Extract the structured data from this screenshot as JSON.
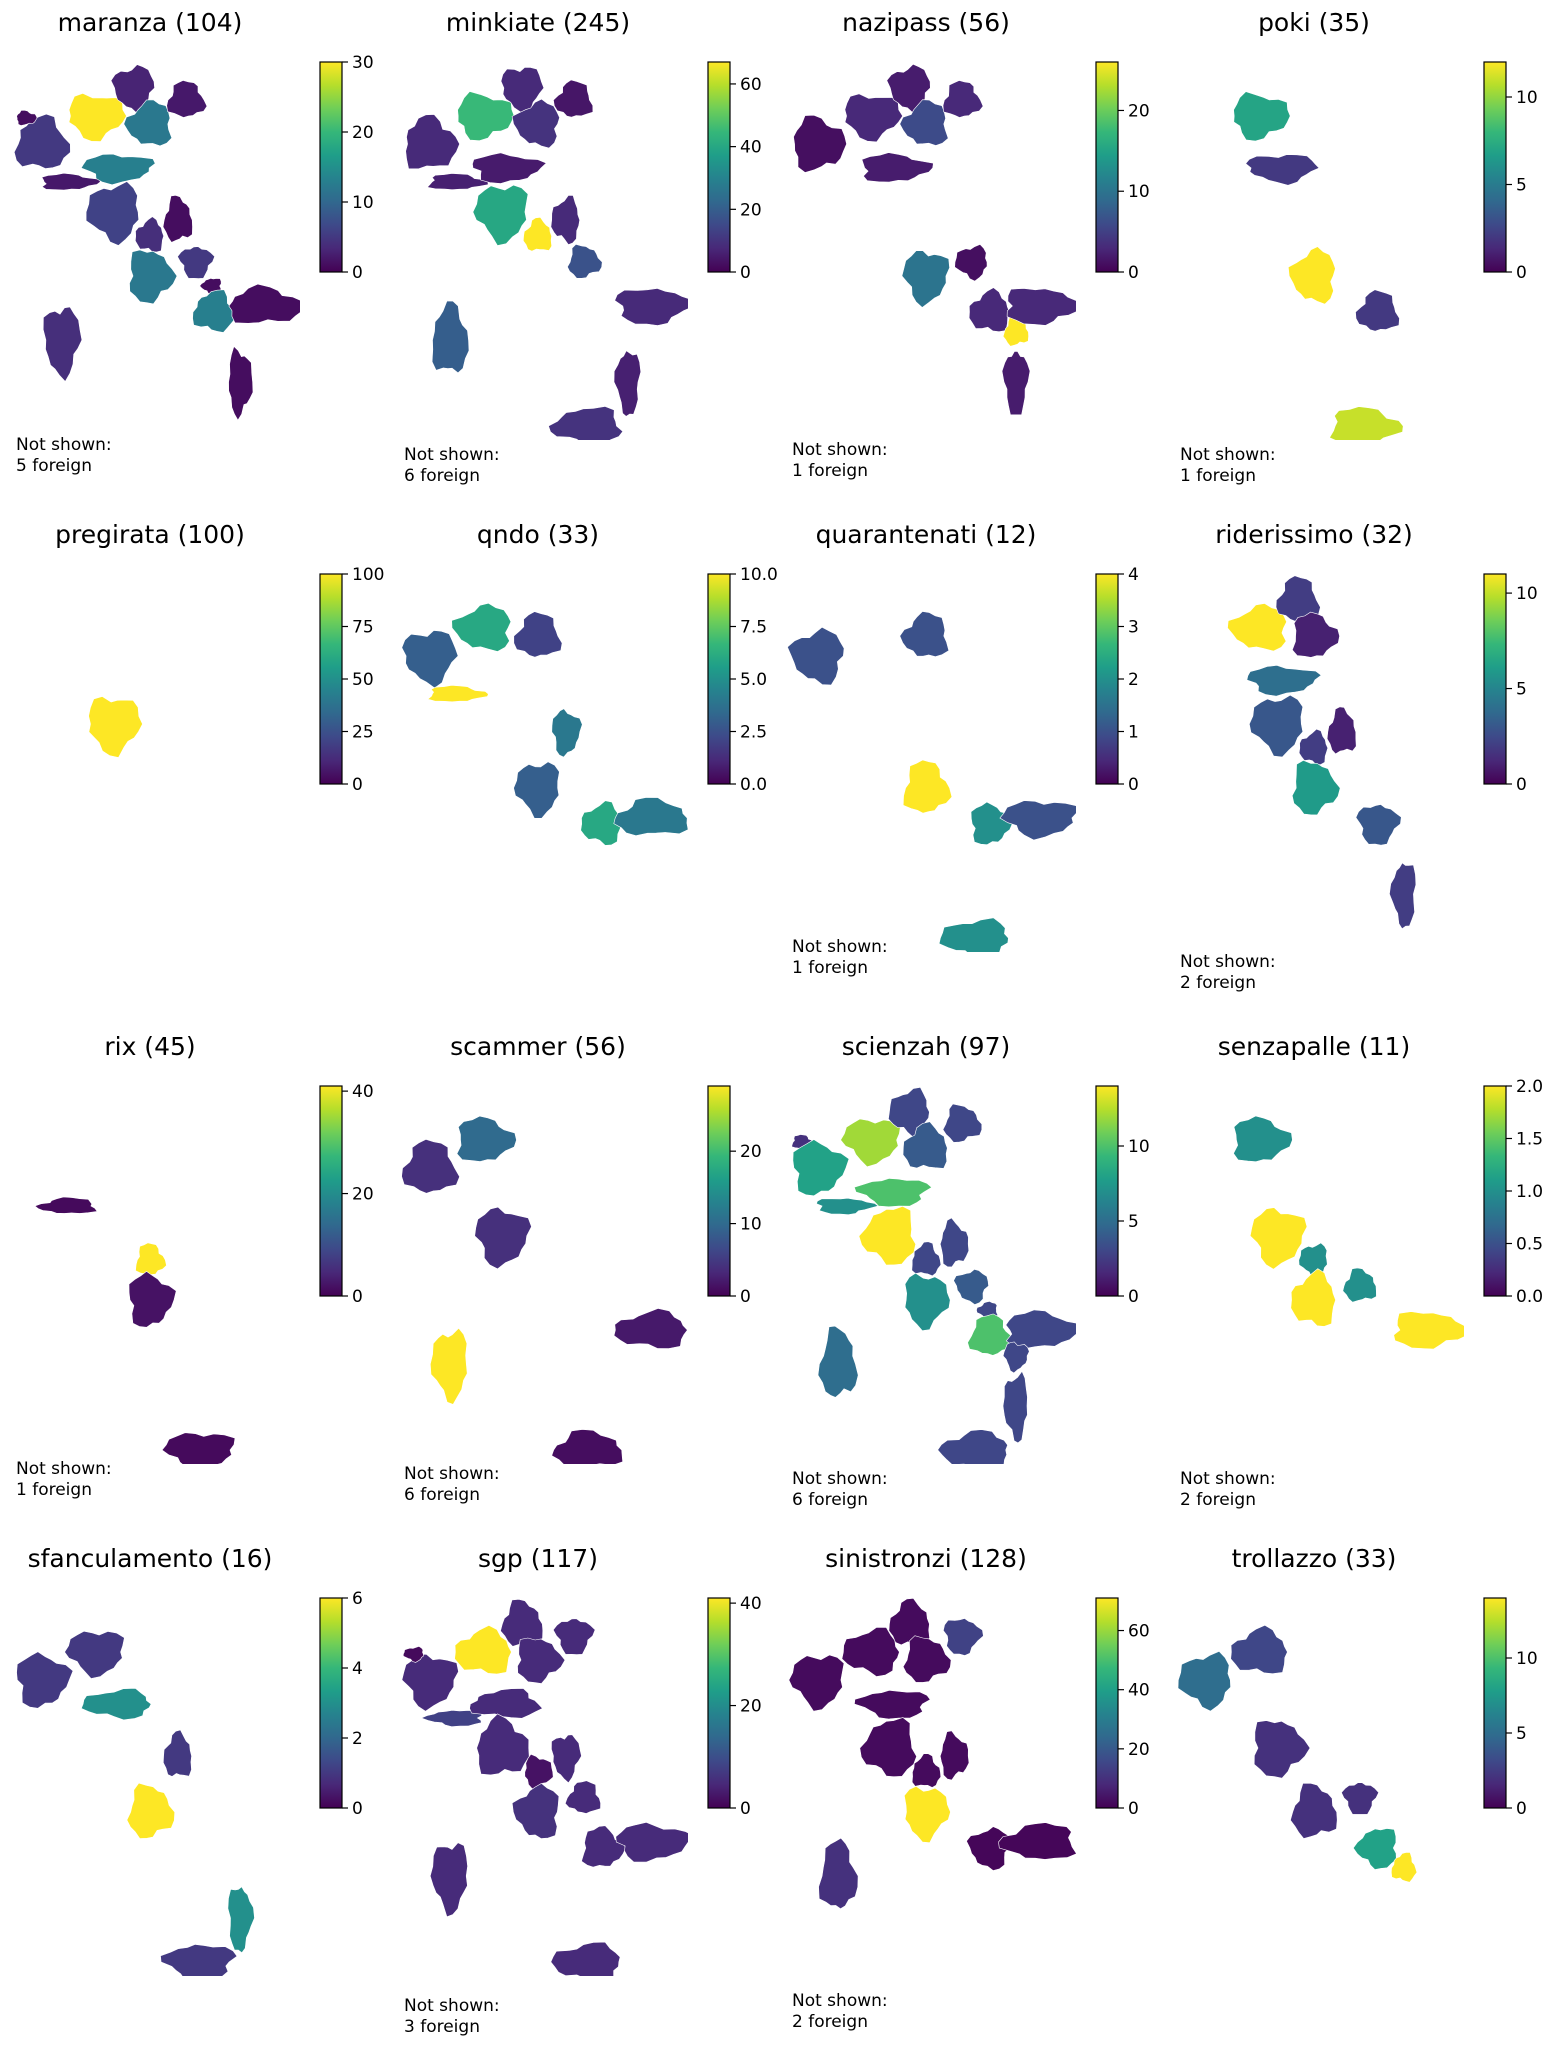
{
  "chart_data": [
    {
      "type": "choropleth",
      "title": "maranza (104)",
      "colorbar": {
        "min": 0,
        "max": 30,
        "ticks": [
          0,
          10,
          20,
          30
        ]
      },
      "not_shown": {
        "label": "Not shown:",
        "value": "5 foreign"
      },
      "regions": [
        {
          "region": "Piemonte",
          "value": 5
        },
        {
          "region": "Valle d'Aosta",
          "value": 1
        },
        {
          "region": "Lombardia",
          "value": 30
        },
        {
          "region": "Trentino-Alto Adige",
          "value": 3
        },
        {
          "region": "Veneto",
          "value": 12
        },
        {
          "region": "Friuli-Venezia Giulia",
          "value": 2
        },
        {
          "region": "Liguria",
          "value": 2
        },
        {
          "region": "Emilia-Romagna",
          "value": 13
        },
        {
          "region": "Toscana",
          "value": 6
        },
        {
          "region": "Umbria",
          "value": 4
        },
        {
          "region": "Marche",
          "value": 1
        },
        {
          "region": "Lazio",
          "value": 12
        },
        {
          "region": "Abruzzo",
          "value": 5
        },
        {
          "region": "Molise",
          "value": 1
        },
        {
          "region": "Campania",
          "value": 13
        },
        {
          "region": "Puglia",
          "value": 1
        },
        {
          "region": "Calabria",
          "value": 1
        },
        {
          "region": "Sardegna",
          "value": 4
        }
      ]
    },
    {
      "type": "choropleth",
      "title": "minkiate (245)",
      "colorbar": {
        "min": 0,
        "max": 67,
        "ticks": [
          0,
          20,
          40,
          60
        ]
      },
      "not_shown": {
        "label": "Not shown:",
        "value": "6 foreign"
      },
      "regions": [
        {
          "region": "Piemonte",
          "value": 8
        },
        {
          "region": "Lombardia",
          "value": 45
        },
        {
          "region": "Trentino-Alto Adige",
          "value": 8
        },
        {
          "region": "Veneto",
          "value": 10
        },
        {
          "region": "Friuli-Venezia Giulia",
          "value": 4
        },
        {
          "region": "Liguria",
          "value": 6
        },
        {
          "region": "Emilia-Romagna",
          "value": 5
        },
        {
          "region": "Toscana",
          "value": 40
        },
        {
          "region": "Marche",
          "value": 8
        },
        {
          "region": "Umbria",
          "value": 67
        },
        {
          "region": "Abruzzo",
          "value": 17
        },
        {
          "region": "Puglia",
          "value": 8
        },
        {
          "region": "Calabria",
          "value": 6
        },
        {
          "region": "Sicilia",
          "value": 10
        },
        {
          "region": "Sardegna",
          "value": 20
        }
      ]
    },
    {
      "type": "choropleth",
      "title": "nazipass (56)",
      "colorbar": {
        "min": 0,
        "max": 26,
        "ticks": [
          0,
          10,
          20
        ]
      },
      "not_shown": {
        "label": "Not shown:",
        "value": "1 foreign"
      },
      "regions": [
        {
          "region": "Piemonte",
          "value": 1
        },
        {
          "region": "Lombardia",
          "value": 3
        },
        {
          "region": "Trentino-Alto Adige",
          "value": 2
        },
        {
          "region": "Veneto",
          "value": 6
        },
        {
          "region": "Friuli-Venezia Giulia",
          "value": 3
        },
        {
          "region": "Emilia-Romagna",
          "value": 2
        },
        {
          "region": "Lazio",
          "value": 10
        },
        {
          "region": "Abruzzo",
          "value": 1
        },
        {
          "region": "Campania",
          "value": 3
        },
        {
          "region": "Basilicata",
          "value": 26
        },
        {
          "region": "Puglia",
          "value": 3
        },
        {
          "region": "Calabria",
          "value": 2
        }
      ]
    },
    {
      "type": "choropleth",
      "title": "poki (35)",
      "colorbar": {
        "min": 0,
        "max": 12,
        "ticks": [
          0,
          5,
          10
        ]
      },
      "not_shown": {
        "label": "Not shown:",
        "value": "1 foreign"
      },
      "regions": [
        {
          "region": "Lombardia",
          "value": 7
        },
        {
          "region": "Emilia-Romagna",
          "value": 2
        },
        {
          "region": "Lazio",
          "value": 12
        },
        {
          "region": "Campania",
          "value": 2
        },
        {
          "region": "Sicilia",
          "value": 11
        }
      ]
    },
    {
      "type": "choropleth",
      "title": "pregirata (100)",
      "colorbar": {
        "min": 0,
        "max": 100,
        "ticks": [
          0,
          25,
          50,
          75,
          100
        ]
      },
      "regions": [
        {
          "region": "Toscana",
          "value": 100
        }
      ]
    },
    {
      "type": "choropleth",
      "title": "qndo (33)",
      "colorbar": {
        "min": 0,
        "max": 10,
        "ticks": [
          "0.0",
          "2.5",
          "5.0",
          "7.5",
          "10.0"
        ]
      },
      "regions": [
        {
          "region": "Piemonte",
          "value": 3
        },
        {
          "region": "Lombardia",
          "value": 6
        },
        {
          "region": "Veneto",
          "value": 2
        },
        {
          "region": "Liguria",
          "value": 10
        },
        {
          "region": "Marche",
          "value": 4
        },
        {
          "region": "Lazio",
          "value": 3
        },
        {
          "region": "Campania",
          "value": 6
        },
        {
          "region": "Puglia",
          "value": 4
        }
      ]
    },
    {
      "type": "choropleth",
      "title": "quarantenati (12)",
      "colorbar": {
        "min": 0,
        "max": 4,
        "ticks": [
          0,
          1,
          2,
          3,
          4
        ]
      },
      "not_shown": {
        "label": "Not shown:",
        "value": "1 foreign"
      },
      "regions": [
        {
          "region": "Piemonte",
          "value": 1
        },
        {
          "region": "Veneto",
          "value": 1
        },
        {
          "region": "Lazio",
          "value": 4
        },
        {
          "region": "Campania",
          "value": 2
        },
        {
          "region": "Puglia",
          "value": 1
        },
        {
          "region": "Sicilia",
          "value": 2
        }
      ]
    },
    {
      "type": "choropleth",
      "title": "riderissimo (32)",
      "colorbar": {
        "min": 0,
        "max": 11,
        "ticks": [
          0,
          5,
          10
        ]
      },
      "not_shown": {
        "label": "Not shown:",
        "value": "2 foreign"
      },
      "regions": [
        {
          "region": "Lombardia",
          "value": 11
        },
        {
          "region": "Trentino-Alto Adige",
          "value": 2
        },
        {
          "region": "Veneto",
          "value": 1
        },
        {
          "region": "Emilia-Romagna",
          "value": 4
        },
        {
          "region": "Toscana",
          "value": 3
        },
        {
          "region": "Umbria",
          "value": 2
        },
        {
          "region": "Marche",
          "value": 1
        },
        {
          "region": "Lazio",
          "value": 6
        },
        {
          "region": "Campania",
          "value": 3
        },
        {
          "region": "Calabria",
          "value": 2
        }
      ]
    },
    {
      "type": "choropleth",
      "title": "rix (45)",
      "colorbar": {
        "min": 0,
        "max": 41,
        "ticks": [
          0,
          20,
          40
        ]
      },
      "not_shown": {
        "label": "Not shown:",
        "value": "1 foreign"
      },
      "regions": [
        {
          "region": "Liguria",
          "value": 1
        },
        {
          "region": "Umbria",
          "value": 41
        },
        {
          "region": "Lazio",
          "value": 2
        },
        {
          "region": "Sicilia",
          "value": 1
        }
      ]
    },
    {
      "type": "choropleth",
      "title": "scammer (56)",
      "colorbar": {
        "min": 0,
        "max": 29,
        "ticks": [
          0,
          10,
          20
        ]
      },
      "not_shown": {
        "label": "Not shown:",
        "value": "6 foreign"
      },
      "regions": [
        {
          "region": "Piemonte",
          "value": 4
        },
        {
          "region": "Lombardia",
          "value": 10
        },
        {
          "region": "Toscana",
          "value": 4
        },
        {
          "region": "Sardegna",
          "value": 29
        },
        {
          "region": "Puglia",
          "value": 2
        },
        {
          "region": "Sicilia",
          "value": 1
        }
      ]
    },
    {
      "type": "choropleth",
      "title": "scienzah (97)",
      "colorbar": {
        "min": 0,
        "max": 14,
        "ticks": [
          0,
          5,
          10
        ]
      },
      "not_shown": {
        "label": "Not shown:",
        "value": "6 foreign"
      },
      "regions": [
        {
          "region": "Valle d'Aosta",
          "value": 2
        },
        {
          "region": "Piemonte",
          "value": 8
        },
        {
          "region": "Lombardia",
          "value": 12
        },
        {
          "region": "Trentino-Alto Adige",
          "value": 3
        },
        {
          "region": "Veneto",
          "value": 4
        },
        {
          "region": "Friuli-Venezia Giulia",
          "value": 3
        },
        {
          "region": "Liguria",
          "value": 7
        },
        {
          "region": "Emilia-Romagna",
          "value": 10
        },
        {
          "region": "Toscana",
          "value": 14
        },
        {
          "region": "Umbria",
          "value": 3
        },
        {
          "region": "Marche",
          "value": 3
        },
        {
          "region": "Lazio",
          "value": 7
        },
        {
          "region": "Abruzzo",
          "value": 4
        },
        {
          "region": "Molise",
          "value": 3
        },
        {
          "region": "Campania",
          "value": 10
        },
        {
          "region": "Puglia",
          "value": 3
        },
        {
          "region": "Basilicata",
          "value": 3
        },
        {
          "region": "Calabria",
          "value": 3
        },
        {
          "region": "Sicilia",
          "value": 3
        },
        {
          "region": "Sardegna",
          "value": 5
        }
      ]
    },
    {
      "type": "choropleth",
      "title": "senzapalle (11)",
      "colorbar": {
        "min": 0,
        "max": 2,
        "ticks": [
          "0.0",
          "0.5",
          "1.0",
          "1.5",
          "2.0"
        ]
      },
      "not_shown": {
        "label": "Not shown:",
        "value": "2 foreign"
      },
      "regions": [
        {
          "region": "Lombardia",
          "value": 1
        },
        {
          "region": "Toscana",
          "value": 2
        },
        {
          "region": "Umbria",
          "value": 1
        },
        {
          "region": "Lazio",
          "value": 2
        },
        {
          "region": "Abruzzo",
          "value": 1
        },
        {
          "region": "Puglia",
          "value": 2
        }
      ]
    },
    {
      "type": "choropleth",
      "title": "sfanculamento (16)",
      "colorbar": {
        "min": 0,
        "max": 6,
        "ticks": [
          0,
          2,
          4,
          6
        ]
      },
      "regions": [
        {
          "region": "Piemonte",
          "value": 1
        },
        {
          "region": "Lombardia",
          "value": 1
        },
        {
          "region": "Emilia-Romagna",
          "value": 3
        },
        {
          "region": "Marche",
          "value": 1
        },
        {
          "region": "Lazio",
          "value": 6
        },
        {
          "region": "Calabria",
          "value": 3
        },
        {
          "region": "Sicilia",
          "value": 1
        }
      ]
    },
    {
      "type": "choropleth",
      "title": "sgp (117)",
      "colorbar": {
        "min": 0,
        "max": 41,
        "ticks": [
          0,
          20,
          40
        ]
      },
      "not_shown": {
        "label": "Not shown:",
        "value": "3 foreign"
      },
      "regions": [
        {
          "region": "Piemonte",
          "value": 5
        },
        {
          "region": "Valle d'Aosta",
          "value": 1
        },
        {
          "region": "Lombardia",
          "value": 41
        },
        {
          "region": "Trentino-Alto Adige",
          "value": 5
        },
        {
          "region": "Veneto",
          "value": 5
        },
        {
          "region": "Friuli-Venezia Giulia",
          "value": 5
        },
        {
          "region": "Liguria",
          "value": 8
        },
        {
          "region": "Emilia-Romagna",
          "value": 5
        },
        {
          "region": "Toscana",
          "value": 5
        },
        {
          "region": "Umbria",
          "value": 2
        },
        {
          "region": "Marche",
          "value": 5
        },
        {
          "region": "Lazio",
          "value": 6
        },
        {
          "region": "Abruzzo",
          "value": 5
        },
        {
          "region": "Campania",
          "value": 5
        },
        {
          "region": "Puglia",
          "value": 5
        },
        {
          "region": "Sardegna",
          "value": 5
        },
        {
          "region": "Sicilia",
          "value": 5
        }
      ]
    },
    {
      "type": "choropleth",
      "title": "sinistronzi (128)",
      "colorbar": {
        "min": 0,
        "max": 71,
        "ticks": [
          0,
          20,
          40,
          60
        ]
      },
      "not_shown": {
        "label": "Not shown:",
        "value": "2 foreign"
      },
      "regions": [
        {
          "region": "Piemonte",
          "value": 2
        },
        {
          "region": "Lombardia",
          "value": 2
        },
        {
          "region": "Trentino-Alto Adige",
          "value": 2
        },
        {
          "region": "Veneto",
          "value": 2
        },
        {
          "region": "Friuli-Venezia Giulia",
          "value": 14
        },
        {
          "region": "Emilia-Romagna",
          "value": 2
        },
        {
          "region": "Toscana",
          "value": 2
        },
        {
          "region": "Umbria",
          "value": 2
        },
        {
          "region": "Marche",
          "value": 2
        },
        {
          "region": "Lazio",
          "value": 71
        },
        {
          "region": "Campania",
          "value": 1
        },
        {
          "region": "Puglia",
          "value": 1
        },
        {
          "region": "Sardegna",
          "value": 10
        }
      ]
    },
    {
      "type": "choropleth",
      "title": "trollazzo (33)",
      "colorbar": {
        "min": 0,
        "max": 14,
        "ticks": [
          0,
          5,
          10
        ]
      },
      "regions": [
        {
          "region": "Piemonte",
          "value": 5
        },
        {
          "region": "Lombardia",
          "value": 3
        },
        {
          "region": "Lazio",
          "value": 2
        },
        {
          "region": "Toscana",
          "value": 2
        },
        {
          "region": "Abruzzo",
          "value": 2
        },
        {
          "region": "Campania",
          "value": 8
        },
        {
          "region": "Basilicata",
          "value": 14
        }
      ]
    }
  ]
}
